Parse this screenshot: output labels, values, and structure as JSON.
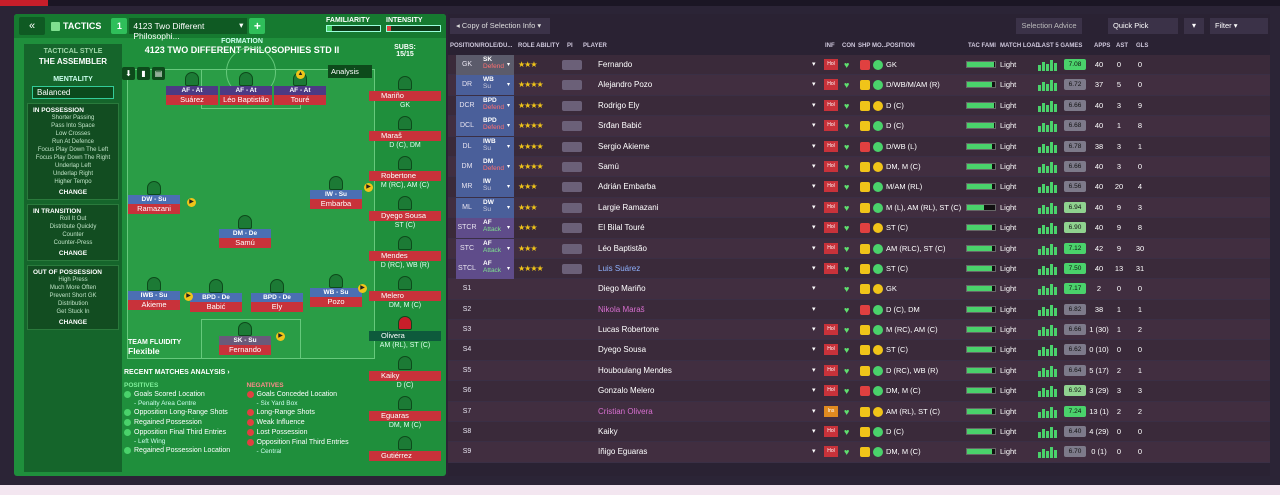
{
  "left": {
    "header": {
      "back": "«",
      "tactics": "TACTICS",
      "slot": "1",
      "tactic_name": "4123 Two Different Philosophi...",
      "add": "+",
      "familiarity": "FAMILIARITY",
      "intensity": "INTENSITY"
    },
    "style": {
      "label": "TACTICAL STYLE",
      "name": "THE ASSEMBLER",
      "mentality_label": "MENTALITY",
      "mentality": "Balanced",
      "in_possession": {
        "title": "IN POSSESSION",
        "items": [
          "Shorter Passing",
          "Pass Into Space",
          "Low Crosses",
          "Run At Defence",
          "Focus Play Down The Left",
          "Focus Play Down The Right",
          "Underlap Left",
          "Underlap Right",
          "Higher Tempo"
        ],
        "change": "CHANGE"
      },
      "in_transition": {
        "title": "IN TRANSITION",
        "items": [
          "Roll It Out",
          "Distribute Quickly",
          "Counter",
          "Counter-Press"
        ],
        "change": "CHANGE"
      },
      "out_of_possession": {
        "title": "OUT OF POSSESSION",
        "items": [
          "High Press",
          "Much More Often",
          "Prevent Short GK",
          "Distribution",
          "Get Stuck In"
        ],
        "change": "CHANGE"
      }
    },
    "formation": {
      "label": "FORMATION",
      "name": "4123 TWO DIFFERENT PHILOSOPHIES STD II",
      "subs_label": "SUBS:",
      "subs_value": "15/15",
      "analysis": "Analysis"
    },
    "players": [
      {
        "role": "AF - At",
        "name": "Suárez"
      },
      {
        "role": "AF - At",
        "name": "Léo Baptistão"
      },
      {
        "role": "AF - At",
        "name": "Touré"
      },
      {
        "role": "DW - Su",
        "name": "Ramazani"
      },
      {
        "role": "IW - Su",
        "name": "Embarba"
      },
      {
        "role": "DM - De",
        "name": "Samú"
      },
      {
        "role": "IWB - Su",
        "name": "Akieme"
      },
      {
        "role": "BPD - De",
        "name": "Babić"
      },
      {
        "role": "BPD - De",
        "name": "Ely"
      },
      {
        "role": "WB - Su",
        "name": "Pozo"
      },
      {
        "role": "SK - Su",
        "name": "Fernando"
      }
    ],
    "subs": [
      {
        "name": "Mariño",
        "pos": "GK"
      },
      {
        "name": "Maraš",
        "pos": "D (C), DM"
      },
      {
        "name": "Robertone",
        "pos": "M (RC), AM (C)"
      },
      {
        "name": "Dyego Sousa",
        "pos": "ST (C)"
      },
      {
        "name": "Mendes",
        "pos": "D (RC), WB (R)"
      },
      {
        "name": "Melero",
        "pos": "DM, M (C)"
      },
      {
        "name": "Olivera",
        "pos": "AM (RL), ST (C)"
      },
      {
        "name": "Kaiky",
        "pos": "D (C)"
      },
      {
        "name": "Eguaras",
        "pos": "DM, M (C)"
      },
      {
        "name": "Gutiérrez",
        "pos": ""
      }
    ],
    "fluidity": {
      "label": "TEAM FLUIDITY",
      "value": "Flexible"
    },
    "recent": {
      "title": "RECENT MATCHES ANALYSIS ›",
      "positives_label": "POSITIVES",
      "negatives_label": "NEGATIVES",
      "positives": [
        {
          "t": "Goals Scored Location",
          "s": "- Penalty Area Centre"
        },
        {
          "t": "Opposition Long-Range Shots",
          "s": ""
        },
        {
          "t": "Regained Possession",
          "s": ""
        },
        {
          "t": "Opposition Final Third Entries",
          "s": "- Left Wing"
        },
        {
          "t": "Regained Possession Location",
          "s": ""
        }
      ],
      "negatives": [
        {
          "t": "Goals Conceded Location",
          "s": "- Six Yard Box"
        },
        {
          "t": "Long-Range Shots",
          "s": ""
        },
        {
          "t": "Weak Influence",
          "s": ""
        },
        {
          "t": "Lost Possession",
          "s": ""
        },
        {
          "t": "Opposition Final Third Entries",
          "s": "- Central"
        }
      ]
    }
  },
  "right": {
    "toolbar": {
      "copy": "Copy of Selection Info",
      "selection_advice": "Selection Advice",
      "quick_pick": "Quick Pick",
      "filter": "Filter"
    },
    "headers": {
      "pos": "POSITION/ROLE/DU...",
      "ra": "ROLE ABILITY",
      "pi": "PI",
      "player": "PLAYER",
      "inf": "INF",
      "con": "CON",
      "shp": "SHP",
      "mo": "MO...",
      "position": "POSITION",
      "tf": "TAC FAMI",
      "ml": "MATCH LOAD",
      "l5": "LAST 5 GAMES",
      "apps": "APPS",
      "ast": "AST",
      "gls": "GLS"
    },
    "rows": [
      {
        "pos": "GK",
        "role": "SK",
        "duty": "Defend",
        "dk": "de",
        "stars": "★★★",
        "player": "Fernando",
        "pcol": "",
        "inf": "Hol",
        "position": "GK",
        "tf": 95,
        "ml": "Light",
        "rating": "7.08",
        "apps": "40",
        "ast": "0",
        "gls": "0"
      },
      {
        "pos": "DR",
        "role": "WB",
        "duty": "Su",
        "dk": "su",
        "stars": "★★★★",
        "player": "Alejandro Pozo",
        "pcol": "",
        "inf": "Hol",
        "position": "D/WB/M/AM (R)",
        "tf": 90,
        "ml": "Light",
        "rating": "6.72",
        "apps": "37",
        "ast": "5",
        "gls": "0"
      },
      {
        "pos": "DCR",
        "role": "BPD",
        "duty": "Defend",
        "dk": "de",
        "stars": "★★★★",
        "player": "Rodrigo Ely",
        "pcol": "",
        "inf": "Hol",
        "position": "D (C)",
        "tf": 95,
        "ml": "Light",
        "rating": "6.66",
        "apps": "40",
        "ast": "3",
        "gls": "9"
      },
      {
        "pos": "DCL",
        "role": "BPD",
        "duty": "Defend",
        "dk": "de",
        "stars": "★★★★",
        "player": "Srđan Babić",
        "pcol": "",
        "inf": "Hol",
        "position": "D (C)",
        "tf": 95,
        "ml": "Light",
        "rating": "6.68",
        "apps": "40",
        "ast": "1",
        "gls": "8"
      },
      {
        "pos": "DL",
        "role": "IWB",
        "duty": "Su",
        "dk": "su",
        "stars": "★★★★",
        "player": "Sergio Akieme",
        "pcol": "",
        "inf": "Hol",
        "position": "D/WB (L)",
        "tf": 90,
        "ml": "Light",
        "rating": "6.78",
        "apps": "38",
        "ast": "3",
        "gls": "1"
      },
      {
        "pos": "DM",
        "role": "DM",
        "duty": "Defend",
        "dk": "de",
        "stars": "★★★★",
        "player": "Samú",
        "pcol": "",
        "inf": "Hol",
        "position": "DM, M (C)",
        "tf": 90,
        "ml": "Light",
        "rating": "6.66",
        "apps": "40",
        "ast": "3",
        "gls": "0"
      },
      {
        "pos": "MR",
        "role": "IW",
        "duty": "Su",
        "dk": "su",
        "stars": "★★★",
        "player": "Adrián Embarba",
        "pcol": "",
        "inf": "Hol",
        "position": "M/AM (RL)",
        "tf": 90,
        "ml": "Light",
        "rating": "6.56",
        "apps": "40",
        "ast": "20",
        "gls": "4"
      },
      {
        "pos": "ML",
        "role": "DW",
        "duty": "Su",
        "dk": "su",
        "stars": "★★★",
        "player": "Largie Ramazani",
        "pcol": "",
        "inf": "Hol",
        "position": "M (L), AM (RL), ST (C)",
        "tf": 60,
        "ml": "Light",
        "rating": "6.94",
        "apps": "40",
        "ast": "9",
        "gls": "3"
      },
      {
        "pos": "STCR",
        "role": "AF",
        "duty": "Attack",
        "dk": "at",
        "stars": "★★★",
        "player": "El Bilal Touré",
        "pcol": "",
        "inf": "Hol",
        "position": "ST (C)",
        "tf": 90,
        "ml": "Light",
        "rating": "6.90",
        "apps": "40",
        "ast": "9",
        "gls": "8"
      },
      {
        "pos": "STC",
        "role": "AF",
        "duty": "Attack",
        "dk": "at",
        "stars": "★★★",
        "player": "Léo Baptistão",
        "pcol": "",
        "inf": "Hol",
        "position": "AM (RLC), ST (C)",
        "tf": 90,
        "ml": "Light",
        "rating": "7.12",
        "apps": "42",
        "ast": "9",
        "gls": "30"
      },
      {
        "pos": "STCL",
        "role": "AF",
        "duty": "Attack",
        "dk": "at",
        "stars": "★★★★",
        "player": "Luis Suárez",
        "pcol": "blu",
        "inf": "Hol",
        "position": "ST (C)",
        "tf": 90,
        "ml": "Light",
        "rating": "7.50",
        "apps": "40",
        "ast": "13",
        "gls": "31"
      },
      {
        "pos": "S1",
        "role": "",
        "duty": "",
        "dk": "",
        "stars": "",
        "player": "Diego Mariño",
        "pcol": "",
        "inf": "",
        "position": "GK",
        "tf": 90,
        "ml": "Light",
        "rating": "7.17",
        "apps": "2",
        "ast": "0",
        "gls": "0"
      },
      {
        "pos": "S2",
        "role": "",
        "duty": "",
        "dk": "",
        "stars": "",
        "player": "Nikola Maraš",
        "pcol": "mag",
        "inf": "",
        "position": "D (C), DM",
        "tf": 90,
        "ml": "Light",
        "rating": "6.82",
        "apps": "38",
        "ast": "1",
        "gls": "1"
      },
      {
        "pos": "S3",
        "role": "",
        "duty": "",
        "dk": "",
        "stars": "",
        "player": "Lucas Robertone",
        "pcol": "",
        "inf": "Hol",
        "position": "M (RC), AM (C)",
        "tf": 90,
        "ml": "Light",
        "rating": "6.66",
        "apps": "1 (30)",
        "ast": "1",
        "gls": "2"
      },
      {
        "pos": "S4",
        "role": "",
        "duty": "",
        "dk": "",
        "stars": "",
        "player": "Dyego Sousa",
        "pcol": "",
        "inf": "Hol",
        "position": "ST (C)",
        "tf": 90,
        "ml": "Light",
        "rating": "6.62",
        "apps": "0 (10)",
        "ast": "0",
        "gls": "0"
      },
      {
        "pos": "S5",
        "role": "",
        "duty": "",
        "dk": "",
        "stars": "",
        "player": "Houboulang Mendes",
        "pcol": "",
        "inf": "Hol",
        "position": "D (RC), WB (R)",
        "tf": 90,
        "ml": "Light",
        "rating": "6.64",
        "apps": "5 (17)",
        "ast": "2",
        "gls": "1"
      },
      {
        "pos": "S6",
        "role": "",
        "duty": "",
        "dk": "",
        "stars": "",
        "player": "Gonzalo Melero",
        "pcol": "",
        "inf": "Hol",
        "position": "DM, M (C)",
        "tf": 90,
        "ml": "Light",
        "rating": "6.92",
        "apps": "3 (29)",
        "ast": "3",
        "gls": "3"
      },
      {
        "pos": "S7",
        "role": "",
        "duty": "",
        "dk": "",
        "stars": "",
        "player": "Cristian Olivera",
        "pcol": "mag",
        "inf": "Ins",
        "position": "AM (RL), ST (C)",
        "tf": 90,
        "ml": "Light",
        "rating": "7.24",
        "apps": "13 (1)",
        "ast": "2",
        "gls": "2"
      },
      {
        "pos": "S8",
        "role": "",
        "duty": "",
        "dk": "",
        "stars": "",
        "player": "Kaiky",
        "pcol": "",
        "inf": "Hol",
        "position": "D (C)",
        "tf": 90,
        "ml": "Light",
        "rating": "6.40",
        "apps": "4 (29)",
        "ast": "0",
        "gls": "0"
      },
      {
        "pos": "S9",
        "role": "",
        "duty": "",
        "dk": "",
        "stars": "",
        "player": "Iñigo Eguaras",
        "pcol": "",
        "inf": "Hol",
        "position": "DM, M (C)",
        "tf": 90,
        "ml": "Light",
        "rating": "6.70",
        "apps": "0 (1)",
        "ast": "0",
        "gls": "0"
      }
    ]
  }
}
